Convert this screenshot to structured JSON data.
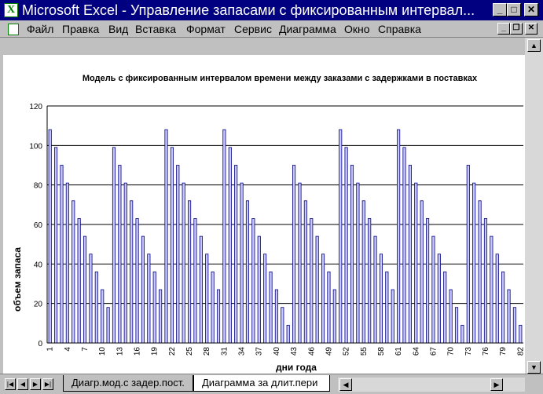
{
  "window": {
    "title": "Microsoft Excel - Управление запасами с фиксированным интервал...",
    "app_icon_glyph": "X",
    "minimize_glyph": "_",
    "maximize_glyph": "□",
    "close_glyph": "✕"
  },
  "menu": {
    "items": [
      "Файл",
      "Правка",
      "Вид",
      "Вставка",
      "Формат",
      "Сервис",
      "Диаграмма",
      "Окно",
      "Справка"
    ],
    "doc_minimize_glyph": "_",
    "doc_restore_glyph": "❐",
    "doc_close_glyph": "✕"
  },
  "sheet_tabs": {
    "tabs": [
      "Диагр.мод.с задер.пост.",
      "Диаграмма за длит.пери"
    ],
    "active_index": 1
  },
  "chart_data": {
    "type": "bar",
    "title": "Модель с фиксированным интервалом времени между заказами с задержками в поставках",
    "xlabel": "дни года",
    "ylabel": "объем запаса",
    "ylim": [
      0,
      120
    ],
    "yticks": [
      0,
      20,
      40,
      60,
      80,
      100,
      120
    ],
    "grid": true,
    "bar_color": "#c8c8ff",
    "tick_every": 3,
    "categories": [
      "1",
      "2",
      "3",
      "4",
      "5",
      "6",
      "7",
      "8",
      "9",
      "10",
      "11",
      "12",
      "13",
      "14",
      "15",
      "16",
      "17",
      "18",
      "19",
      "20",
      "21",
      "22",
      "23",
      "24",
      "25",
      "26",
      "27",
      "28",
      "29",
      "30",
      "31",
      "32",
      "33",
      "34",
      "35",
      "36",
      "37",
      "38",
      "39",
      "40",
      "41",
      "42",
      "43",
      "44",
      "45",
      "46",
      "47",
      "48",
      "49",
      "50",
      "51",
      "52",
      "53",
      "54",
      "55",
      "56",
      "57",
      "58",
      "59",
      "60",
      "61",
      "62",
      "63",
      "64",
      "65",
      "66",
      "67",
      "68",
      "69",
      "70",
      "71",
      "72",
      "73",
      "74",
      "75",
      "76",
      "77",
      "78",
      "79",
      "80",
      "81",
      "82"
    ],
    "values": [
      108,
      99,
      90,
      81,
      72,
      63,
      54,
      45,
      36,
      27,
      18,
      99,
      90,
      81,
      72,
      63,
      54,
      45,
      36,
      27,
      108,
      99,
      90,
      81,
      72,
      63,
      54,
      45,
      36,
      27,
      108,
      99,
      90,
      81,
      72,
      63,
      54,
      45,
      36,
      27,
      18,
      9,
      90,
      81,
      72,
      63,
      54,
      45,
      36,
      27,
      108,
      99,
      90,
      81,
      72,
      63,
      54,
      45,
      36,
      27,
      108,
      99,
      90,
      81,
      72,
      63,
      54,
      45,
      36,
      27,
      18,
      9,
      90,
      81,
      72,
      63,
      54,
      45,
      36,
      27,
      18,
      9
    ]
  }
}
